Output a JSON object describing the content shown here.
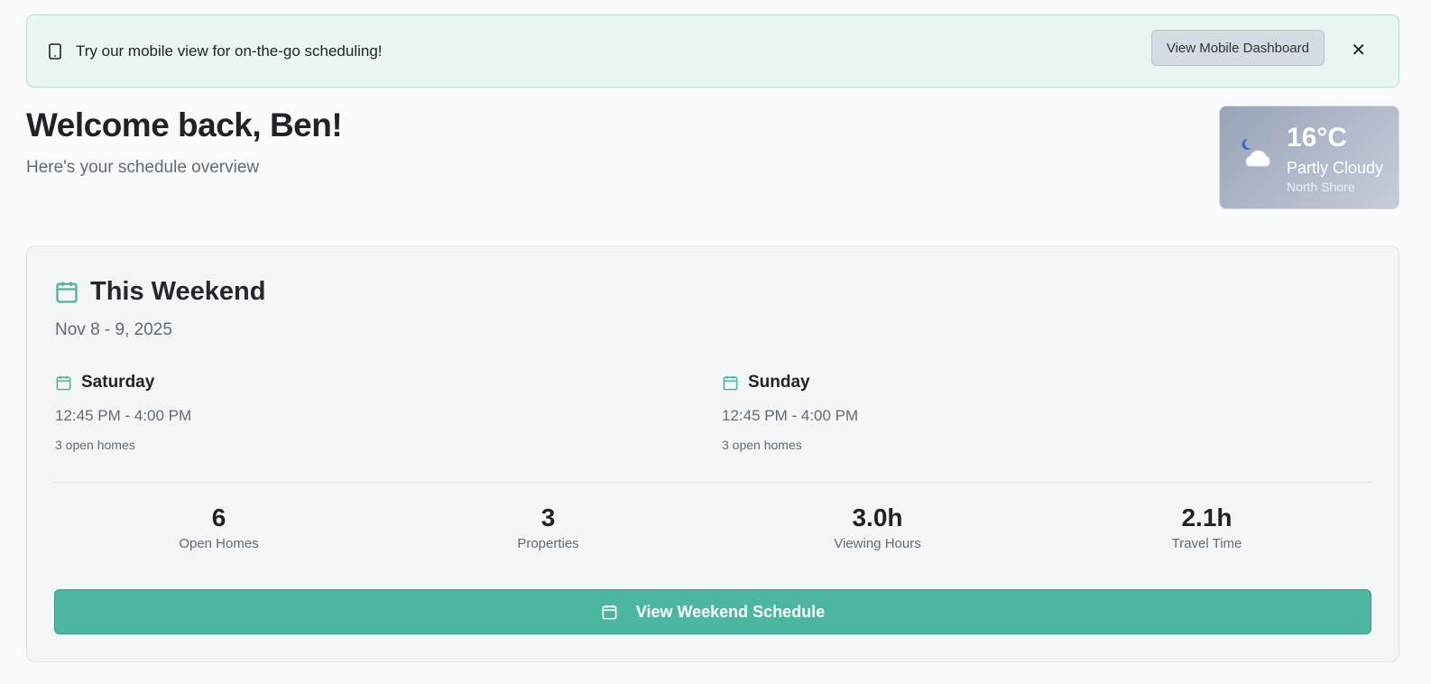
{
  "banner": {
    "message": "Try our mobile view for on-the-go scheduling!",
    "button": "View Mobile Dashboard",
    "close": "✕"
  },
  "header": {
    "title": "Welcome back, Ben!",
    "subtitle": "Here's your schedule overview"
  },
  "weather": {
    "temp": "16°C",
    "condition": "Partly Cloudy",
    "location": "North Shore",
    "icon": "moon-cloud-icon"
  },
  "weekend": {
    "title": "This Weekend",
    "dates": "Nov 8 - 9, 2025",
    "days": [
      {
        "name": "Saturday",
        "time": "12:45 PM - 4:00 PM",
        "homes": "3 open homes"
      },
      {
        "name": "Sunday",
        "time": "12:45 PM - 4:00 PM",
        "homes": "3 open homes"
      }
    ],
    "stats": [
      {
        "value": "6",
        "label": "Open Homes"
      },
      {
        "value": "3",
        "label": "Properties"
      },
      {
        "value": "3.0h",
        "label": "Viewing Hours"
      },
      {
        "value": "2.1h",
        "label": "Travel Time"
      }
    ],
    "button": "View Weekend Schedule"
  },
  "colors": {
    "accent": "#4db6a0"
  }
}
